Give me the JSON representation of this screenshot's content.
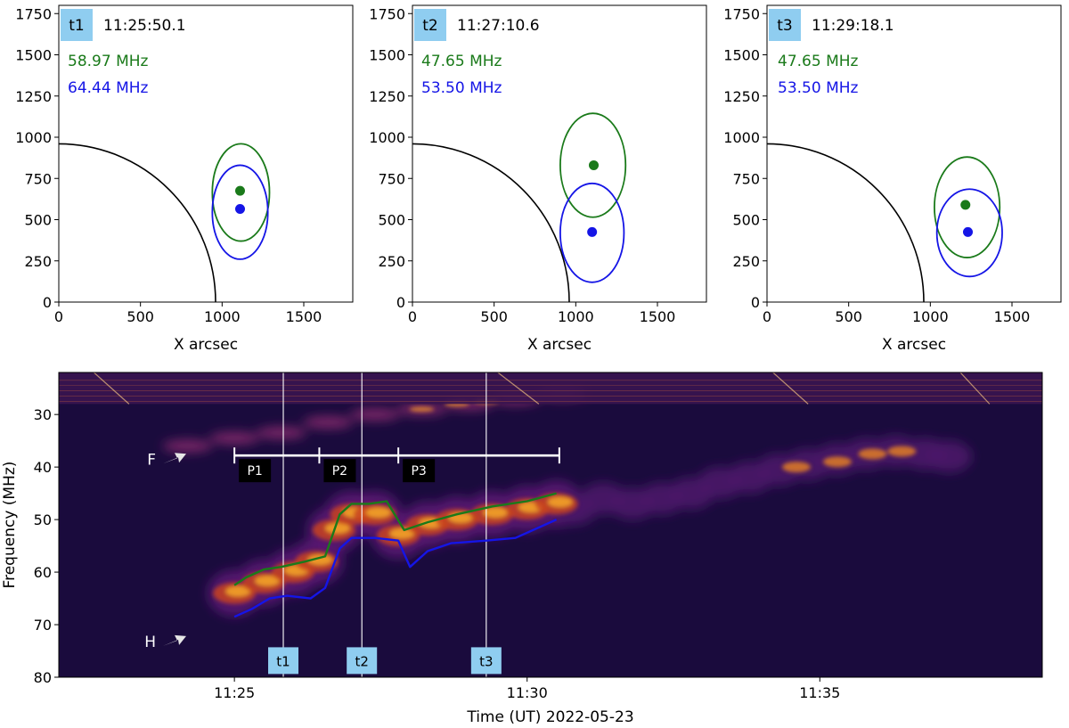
{
  "colors": {
    "green": "#1a7a1a",
    "blue": "#1515e6",
    "limb": "#000000",
    "badge": "#8fcdf0",
    "label_bg": "#000000",
    "bar": "#ffffff",
    "spec_bg": "#1a0b3d"
  },
  "chart_data": [
    {
      "type": "scatter",
      "panel": "t1",
      "badge": "t1",
      "time": "11:25:50.1",
      "xlabel": "X arcsec",
      "ylabel": "",
      "xlim": [
        0,
        1800
      ],
      "ylim": [
        0,
        1800
      ],
      "xticks": [
        "0",
        "500",
        "1000",
        "1500"
      ],
      "yticks": [
        "0",
        "250",
        "500",
        "750",
        "1000",
        "1250",
        "1500",
        "1750"
      ],
      "limb_radius": 960,
      "series": [
        {
          "name": "58.97 MHz",
          "color": "green",
          "label": "58.97 MHz",
          "center": [
            1110,
            675
          ],
          "ellipse": {
            "cx": 1115,
            "cy": 665,
            "rx": 175,
            "ry": 295
          }
        },
        {
          "name": "64.44 MHz",
          "color": "blue",
          "label": "64.44 MHz",
          "center": [
            1110,
            565
          ],
          "ellipse": {
            "cx": 1110,
            "cy": 545,
            "rx": 170,
            "ry": 285
          }
        }
      ]
    },
    {
      "type": "scatter",
      "panel": "t2",
      "badge": "t2",
      "time": "11:27:10.6",
      "xlabel": "X arcsec",
      "ylabel": "",
      "xlim": [
        0,
        1800
      ],
      "ylim": [
        0,
        1800
      ],
      "xticks": [
        "0",
        "500",
        "1000",
        "1500"
      ],
      "yticks": [
        "0",
        "250",
        "500",
        "750",
        "1000",
        "1250",
        "1500",
        "1750"
      ],
      "limb_radius": 960,
      "series": [
        {
          "name": "47.65 MHz",
          "color": "green",
          "label": "47.65 MHz",
          "center": [
            1110,
            830
          ],
          "ellipse": {
            "cx": 1105,
            "cy": 830,
            "rx": 200,
            "ry": 315
          }
        },
        {
          "name": "53.50 MHz",
          "color": "blue",
          "label": "53.50 MHz",
          "center": [
            1100,
            425
          ],
          "ellipse": {
            "cx": 1100,
            "cy": 420,
            "rx": 195,
            "ry": 300
          }
        }
      ]
    },
    {
      "type": "scatter",
      "panel": "t3",
      "badge": "t3",
      "time": "11:29:18.1",
      "xlabel": "X arcsec",
      "ylabel": "",
      "xlim": [
        0,
        1800
      ],
      "ylim": [
        0,
        1800
      ],
      "xticks": [
        "0",
        "500",
        "1000",
        "1500"
      ],
      "yticks": [
        "0",
        "250",
        "500",
        "750",
        "1000",
        "1250",
        "1500",
        "1750"
      ],
      "limb_radius": 960,
      "series": [
        {
          "name": "47.65 MHz",
          "color": "green",
          "label": "47.65 MHz",
          "center": [
            1215,
            590
          ],
          "ellipse": {
            "cx": 1225,
            "cy": 575,
            "rx": 200,
            "ry": 305
          }
        },
        {
          "name": "53.50 MHz",
          "color": "blue",
          "label": "53.50 MHz",
          "center": [
            1230,
            425
          ],
          "ellipse": {
            "cx": 1240,
            "cy": 420,
            "rx": 200,
            "ry": 265
          }
        }
      ]
    },
    {
      "type": "heatmap",
      "panel": "spectrogram",
      "title": "",
      "xlabel": "Time (UT) 2022-05-23",
      "ylabel": "Frequency (MHz)",
      "xlim_min": [
        22,
        38.8
      ],
      "ylim": [
        80,
        22
      ],
      "xticks": [
        {
          "value": 25,
          "label": "11:25"
        },
        {
          "value": 30,
          "label": "11:30"
        },
        {
          "value": 35,
          "label": "11:35"
        }
      ],
      "yticks": [
        "30",
        "40",
        "50",
        "60",
        "70",
        "80"
      ],
      "time_markers": [
        {
          "label": "t1",
          "t": 25.835
        },
        {
          "label": "t2",
          "t": 27.177
        },
        {
          "label": "t3",
          "t": 29.302
        }
      ],
      "phase_bar": {
        "freq": 37.8,
        "ticks": [
          25.0,
          26.45,
          27.8,
          30.55
        ],
        "labels": [
          {
            "label": "P1",
            "t": 25.35
          },
          {
            "label": "P2",
            "t": 26.8
          },
          {
            "label": "P3",
            "t": 28.15
          }
        ]
      },
      "annotations": [
        {
          "label": "F",
          "t": 23.75,
          "freq": 38.5
        },
        {
          "label": "H",
          "t": 23.75,
          "freq": 73.2
        }
      ],
      "series": [
        {
          "name": "fundamental tracking (green)",
          "color": "green",
          "t": [
            25.0,
            25.2,
            25.5,
            25.8,
            26.2,
            26.55,
            26.8,
            27.0,
            27.3,
            27.6,
            27.9,
            28.3,
            28.8,
            29.4,
            30.0,
            30.5
          ],
          "freq": [
            62.5,
            61.0,
            59.5,
            59.0,
            58.0,
            57.0,
            49.0,
            47.0,
            47.0,
            46.5,
            52.0,
            50.5,
            49.0,
            47.5,
            46.5,
            45.0
          ]
        },
        {
          "name": "harmonic tracking (blue)",
          "color": "blue",
          "t": [
            25.0,
            25.3,
            25.6,
            25.9,
            26.3,
            26.55,
            26.8,
            27.0,
            27.4,
            27.8,
            28.0,
            28.3,
            28.7,
            29.3,
            29.8,
            30.1,
            30.5
          ],
          "freq": [
            68.5,
            67.0,
            65.0,
            64.5,
            65.0,
            63.0,
            55.5,
            53.5,
            53.5,
            54.0,
            59.0,
            56.0,
            54.5,
            54.0,
            53.5,
            52.0,
            50.0
          ]
        }
      ]
    }
  ]
}
